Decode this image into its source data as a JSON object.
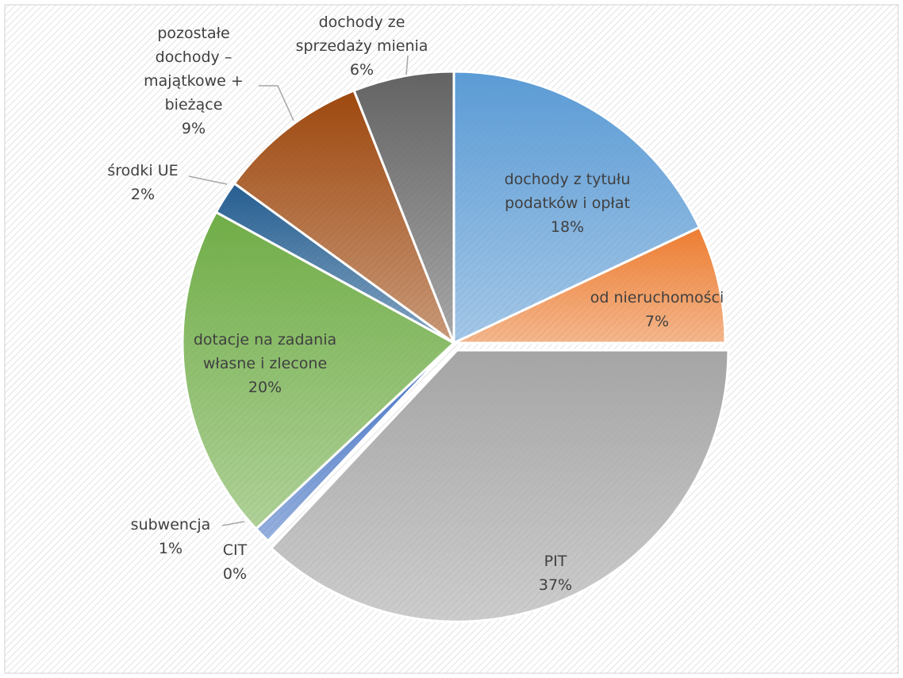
{
  "chart_data": {
    "type": "pie",
    "categories": [
      "dochody z tytułu podatków i opłat",
      "od nieruchomości",
      "PIT",
      "CIT",
      "subwencja",
      "dotacje na zadania własne i zlecone",
      "środki UE",
      "pozostałe dochody – majątkowe + bieżące",
      "dochody ze sprzedaży mienia"
    ],
    "values": [
      18,
      7,
      37,
      0,
      1,
      20,
      2,
      9,
      6
    ],
    "value_labels": [
      "18%",
      "7%",
      "37%",
      "0%",
      "1%",
      "20%",
      "2%",
      "9%",
      "6%"
    ],
    "colors": [
      "#5b9bd5",
      "#ed7d31",
      "#a5a5a5",
      "#ffc000",
      "#4472c4",
      "#70ad47",
      "#255e91",
      "#9e480e",
      "#636363"
    ],
    "exploded": [
      2
    ]
  }
}
